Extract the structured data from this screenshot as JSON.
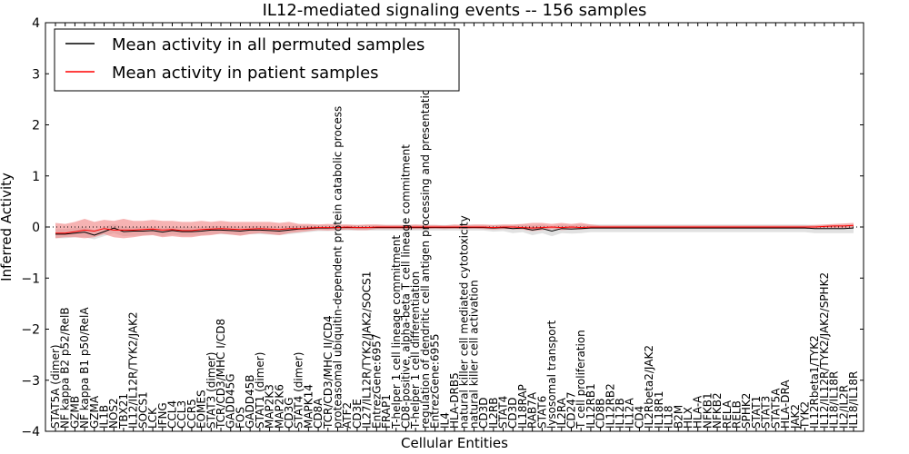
{
  "chart_data": {
    "type": "line",
    "title": "IL12-mediated signaling events -- 156 samples",
    "xlabel": "Cellular Entities",
    "ylabel": "Inferred Activity",
    "ylim": [
      -4,
      4
    ],
    "yticks": [
      "4",
      "3",
      "2",
      "1",
      "0",
      "−1",
      "−2",
      "−3",
      "−4"
    ],
    "legend": {
      "placement": "top-left",
      "entries": [
        {
          "label": "Mean activity in all permuted samples",
          "color": "#000000"
        },
        {
          "label": "Mean activity in patient samples",
          "color": "#ff0000"
        }
      ]
    },
    "colors": {
      "patient_line": "#ff0000",
      "patient_band": "#f08080",
      "permuted_line": "#000000",
      "permuted_band": "#c8c8c8",
      "zero_line": "#000000"
    },
    "categories": [
      "STAT5A (dimer)",
      "NF kappa B2 p52/RelB",
      "GZMB",
      "NF kappa B1 p50/RelA",
      "GZMA",
      "IL1B",
      "NOS2",
      "TBX21",
      "IL12/IL12R/TYK2/JAK2",
      "SOCS1",
      "LCK",
      "IFNG",
      "CCL4",
      "CCL3",
      "CCR5",
      "EOMES",
      "STAT3 (dimer)",
      "TCR/CD3/MHC I/CD8",
      "GADD45G",
      "FOS",
      "GADD45B",
      "STAT1 (dimer)",
      "MAP2K3",
      "MAP2K6",
      "CD3G",
      "STAT4 (dimer)",
      "MAPK14",
      "CD8A",
      "TCR/CD3/MHC II/CD4",
      "proteasomal ubiquitin-dependent protein catabolic process",
      "ATF2",
      "CD3E",
      "IL27/IL12R/TYK2/JAK2/SOCS1",
      "EntrezGene:6957",
      "FRAP1",
      "T-helper 1 cell lineage commitment",
      "CD8-positive, alpha-beta T cell lineage commitment",
      "T-helper 1 cell differentiation",
      "regulation of dendritic cell antigen processing and presentation",
      "EntrezGene:6955",
      "IL4",
      "HLA-DRB5",
      "natural killer cell mediated cytotoxicity",
      "natural killer cell activation",
      "CD3D",
      "IL2RB",
      "STAT4",
      "CD3D",
      "IL18RAP",
      "RAB7A",
      "STAT6",
      "lysosomal transport",
      "IL2RA",
      "CD247",
      "T cell proliferation",
      "IL12RB1",
      "CD8B",
      "IL12RB2",
      "IL12B",
      "IL12A",
      "CD4",
      "IL2Rbeta2/JAK2",
      "IL18R1",
      "IL18",
      "B2M",
      "HLX",
      "HLA-A",
      "NFKB1",
      "NFKB2",
      "RELA",
      "RELB",
      "SPHK2",
      "STAT1",
      "STAT3",
      "STAT5A",
      "HLA-DRA",
      "JAK2",
      "TYK2",
      "IL12Rbeta1/TYK2",
      "IL12/IL12R/TYK2/JAK2/SPHK2",
      "IL18/IL18R",
      "IL2/IL2R",
      "IL18/IL18R"
    ],
    "series": [
      {
        "name": "Mean activity in patient samples",
        "values": [
          -0.12,
          -0.12,
          -0.09,
          -0.06,
          -0.08,
          -0.03,
          -0.06,
          -0.06,
          -0.06,
          -0.05,
          -0.04,
          -0.06,
          -0.05,
          -0.07,
          -0.07,
          -0.05,
          -0.04,
          -0.03,
          -0.04,
          -0.05,
          -0.04,
          -0.03,
          -0.04,
          -0.05,
          -0.03,
          -0.03,
          -0.02,
          -0.01,
          -0.01,
          -0.01,
          0.0,
          -0.01,
          -0.01,
          0.0,
          0.0,
          0.0,
          0.0,
          0.0,
          0.0,
          0.0,
          0.0,
          0.0,
          0.0,
          0.0,
          0.0,
          -0.01,
          0.0,
          0.0,
          -0.01,
          -0.02,
          -0.01,
          0.0,
          -0.01,
          0.0,
          -0.01,
          0.0,
          0.0,
          0.0,
          0.0,
          0.0,
          0.0,
          0.0,
          0.0,
          0.0,
          0.0,
          0.0,
          0.0,
          0.0,
          0.0,
          0.0,
          0.0,
          0.0,
          0.0,
          0.0,
          0.0,
          0.0,
          0.0,
          0.0,
          0.0,
          0.01,
          0.02,
          0.02,
          0.03
        ],
        "lower": [
          -0.22,
          -0.2,
          -0.2,
          -0.22,
          -0.2,
          -0.14,
          -0.2,
          -0.22,
          -0.2,
          -0.17,
          -0.16,
          -0.2,
          -0.18,
          -0.2,
          -0.2,
          -0.17,
          -0.16,
          -0.13,
          -0.15,
          -0.17,
          -0.14,
          -0.12,
          -0.14,
          -0.16,
          -0.12,
          -0.1,
          -0.08,
          -0.06,
          -0.07,
          -0.06,
          -0.05,
          -0.06,
          -0.06,
          -0.04,
          -0.04,
          -0.04,
          -0.04,
          -0.04,
          -0.04,
          -0.03,
          -0.04,
          -0.03,
          -0.04,
          -0.03,
          -0.04,
          -0.05,
          -0.04,
          -0.04,
          -0.05,
          -0.08,
          -0.06,
          -0.04,
          -0.06,
          -0.05,
          -0.05,
          -0.03,
          -0.03,
          -0.03,
          -0.03,
          -0.03,
          -0.03,
          -0.03,
          -0.03,
          -0.03,
          -0.03,
          -0.03,
          -0.03,
          -0.03,
          -0.03,
          -0.03,
          -0.03,
          -0.03,
          -0.03,
          -0.03,
          -0.03,
          -0.03,
          -0.03,
          -0.03,
          -0.03,
          -0.02,
          -0.02,
          -0.02,
          -0.01
        ],
        "upper": [
          0.08,
          0.06,
          0.1,
          0.16,
          0.1,
          0.14,
          0.12,
          0.16,
          0.12,
          0.12,
          0.14,
          0.12,
          0.12,
          0.1,
          0.1,
          0.12,
          0.1,
          0.12,
          0.1,
          0.1,
          0.1,
          0.1,
          0.1,
          0.08,
          0.1,
          0.06,
          0.06,
          0.05,
          0.06,
          0.05,
          0.05,
          0.04,
          0.05,
          0.05,
          0.04,
          0.04,
          0.04,
          0.05,
          0.04,
          0.04,
          0.03,
          0.05,
          0.04,
          0.05,
          0.05,
          0.04,
          0.05,
          0.05,
          0.06,
          0.08,
          0.08,
          0.06,
          0.08,
          0.06,
          0.08,
          0.05,
          0.03,
          0.03,
          0.03,
          0.03,
          0.03,
          0.03,
          0.03,
          0.03,
          0.03,
          0.03,
          0.03,
          0.03,
          0.03,
          0.03,
          0.03,
          0.03,
          0.03,
          0.03,
          0.03,
          0.03,
          0.03,
          0.03,
          0.04,
          0.05,
          0.06,
          0.07,
          0.08
        ]
      },
      {
        "name": "Mean activity in all permuted samples",
        "values": [
          -0.14,
          -0.14,
          -0.12,
          -0.1,
          -0.16,
          -0.09,
          -0.02,
          -0.09,
          -0.08,
          -0.08,
          -0.07,
          -0.1,
          -0.07,
          -0.09,
          -0.09,
          -0.08,
          -0.06,
          -0.06,
          -0.07,
          -0.08,
          -0.06,
          -0.06,
          -0.07,
          -0.08,
          -0.06,
          -0.04,
          -0.03,
          -0.02,
          -0.02,
          -0.01,
          -0.01,
          -0.01,
          -0.01,
          -0.01,
          -0.01,
          -0.01,
          -0.01,
          -0.01,
          -0.01,
          -0.01,
          -0.01,
          -0.01,
          -0.01,
          -0.01,
          -0.01,
          -0.02,
          -0.01,
          -0.03,
          -0.02,
          -0.06,
          -0.03,
          -0.08,
          -0.03,
          -0.04,
          -0.03,
          -0.02,
          -0.02,
          -0.02,
          -0.02,
          -0.02,
          -0.02,
          -0.02,
          -0.02,
          -0.02,
          -0.02,
          -0.02,
          -0.02,
          -0.02,
          -0.02,
          -0.02,
          -0.02,
          -0.02,
          -0.02,
          -0.02,
          -0.02,
          -0.02,
          -0.02,
          -0.02,
          -0.03,
          -0.03,
          -0.03,
          -0.03,
          -0.02
        ],
        "lower": [
          -0.22,
          -0.22,
          -0.2,
          -0.2,
          -0.24,
          -0.18,
          -0.12,
          -0.18,
          -0.17,
          -0.16,
          -0.15,
          -0.18,
          -0.15,
          -0.17,
          -0.17,
          -0.16,
          -0.14,
          -0.14,
          -0.15,
          -0.16,
          -0.14,
          -0.14,
          -0.15,
          -0.16,
          -0.14,
          -0.12,
          -0.1,
          -0.08,
          -0.08,
          -0.07,
          -0.07,
          -0.07,
          -0.07,
          -0.07,
          -0.07,
          -0.07,
          -0.07,
          -0.07,
          -0.07,
          -0.07,
          -0.07,
          -0.07,
          -0.07,
          -0.07,
          -0.07,
          -0.09,
          -0.08,
          -0.12,
          -0.1,
          -0.16,
          -0.12,
          -0.18,
          -0.12,
          -0.13,
          -0.12,
          -0.1,
          -0.1,
          -0.1,
          -0.1,
          -0.1,
          -0.1,
          -0.1,
          -0.1,
          -0.1,
          -0.1,
          -0.1,
          -0.1,
          -0.1,
          -0.1,
          -0.1,
          -0.1,
          -0.1,
          -0.1,
          -0.1,
          -0.1,
          -0.1,
          -0.1,
          -0.1,
          -0.12,
          -0.12,
          -0.12,
          -0.12,
          -0.12
        ],
        "upper": [
          -0.04,
          -0.04,
          -0.02,
          0.0,
          -0.06,
          0.0,
          0.06,
          0.0,
          0.0,
          0.0,
          0.0,
          -0.02,
          0.0,
          0.0,
          0.0,
          0.0,
          0.02,
          0.02,
          0.01,
          0.0,
          0.02,
          0.02,
          0.01,
          0.0,
          0.02,
          0.03,
          0.03,
          0.04,
          0.04,
          0.04,
          0.04,
          0.04,
          0.04,
          0.04,
          0.04,
          0.04,
          0.04,
          0.04,
          0.04,
          0.04,
          0.04,
          0.04,
          0.04,
          0.04,
          0.04,
          0.04,
          0.04,
          0.04,
          0.05,
          0.03,
          0.05,
          0.02,
          0.05,
          0.04,
          0.05,
          0.05,
          0.05,
          0.05,
          0.05,
          0.05,
          0.05,
          0.05,
          0.05,
          0.05,
          0.05,
          0.05,
          0.05,
          0.05,
          0.05,
          0.05,
          0.05,
          0.05,
          0.05,
          0.05,
          0.05,
          0.05,
          0.05,
          0.05,
          0.04,
          0.04,
          0.04,
          0.04,
          0.05
        ]
      }
    ]
  }
}
